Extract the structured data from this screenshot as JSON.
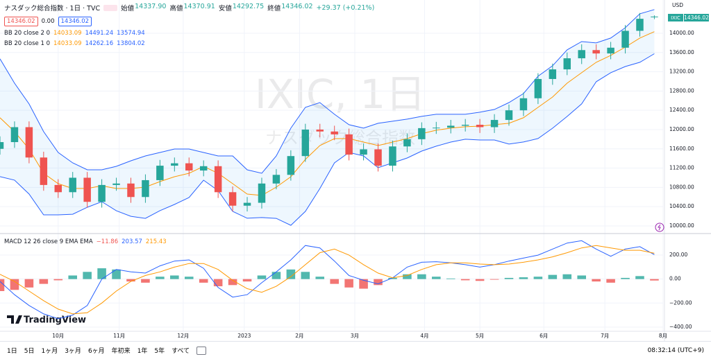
{
  "header": {
    "symbol": "ナスダック総合指数 · 1日 · TVC",
    "ohlc": [
      {
        "label": "始値",
        "value": "14337.90"
      },
      {
        "label": "高値",
        "value": "14370.91"
      },
      {
        "label": "安値",
        "value": "14292.75"
      },
      {
        "label": "終値",
        "value": "14346.02"
      }
    ],
    "change": "+29.37 (+0.21%)",
    "badges": [
      "14346.02",
      "0.00",
      "14346.02"
    ],
    "currency": "USD",
    "price_tag": {
      "symbol": "IXIC",
      "value": "14346.02"
    },
    "watermark": "IXIC, 1日",
    "watermark_sub": "ナスダック総合指数",
    "brand": "TradingView"
  },
  "chart_data": [
    {
      "type": "candlestick",
      "xlim": [
        0,
        228
      ],
      "ylim": [
        9870,
        14690
      ],
      "grid": true,
      "up_color": "#26a69a",
      "down_color": "#ef5350",
      "x": [
        0,
        5,
        10,
        15,
        20,
        25,
        30,
        35,
        40,
        45,
        50,
        55,
        60,
        65,
        70,
        75,
        80,
        85,
        90,
        95,
        100,
        105,
        110,
        115,
        120,
        125,
        130,
        135,
        140,
        145,
        150,
        155,
        160,
        165,
        170,
        175,
        180,
        185,
        190,
        195,
        200,
        205,
        210,
        215,
        220,
        225
      ],
      "open": [
        11600,
        11740,
        12050,
        11420,
        10850,
        10700,
        11000,
        10500,
        10850,
        10880,
        10600,
        10950,
        11250,
        11300,
        11150,
        11240,
        10700,
        10420,
        10480,
        10880,
        11060,
        11450,
        12000,
        11960,
        11900,
        11480,
        11590,
        11250,
        11650,
        11800,
        12030,
        12040,
        12080,
        12100,
        12050,
        12200,
        12400,
        12650,
        13050,
        13250,
        13480,
        13650,
        13580,
        13700,
        14050,
        14337.9
      ],
      "high": [
        11860,
        12170,
        12170,
        11540,
        10970,
        11120,
        11120,
        10970,
        11000,
        11000,
        11070,
        11370,
        11420,
        11420,
        11360,
        11360,
        10820,
        10600,
        11000,
        11180,
        11570,
        12120,
        12120,
        12080,
        12020,
        11710,
        11710,
        11770,
        11920,
        12150,
        12160,
        12200,
        12220,
        12220,
        12320,
        12520,
        12770,
        13170,
        13370,
        13600,
        13770,
        13770,
        13820,
        14170,
        14420,
        14370.91
      ],
      "low": [
        11480,
        11620,
        11300,
        10730,
        10580,
        10580,
        10380,
        10380,
        10730,
        10480,
        10480,
        10830,
        11130,
        11030,
        11030,
        10580,
        10300,
        10300,
        10360,
        10760,
        10940,
        11330,
        11840,
        11780,
        11360,
        11360,
        11130,
        11130,
        11530,
        11680,
        11910,
        11920,
        11960,
        11930,
        11930,
        12080,
        12280,
        12530,
        12930,
        13130,
        13360,
        13460,
        13460,
        13580,
        13930,
        14292.75
      ],
      "close": [
        11740,
        12050,
        11420,
        10850,
        10700,
        11000,
        10500,
        10850,
        10880,
        10600,
        10950,
        11250,
        11300,
        11150,
        11240,
        10700,
        10420,
        10480,
        10880,
        11060,
        11450,
        12000,
        11960,
        11900,
        11480,
        11590,
        11250,
        11650,
        11800,
        12030,
        12040,
        12080,
        12100,
        12050,
        12200,
        12400,
        12650,
        13050,
        13250,
        13480,
        13650,
        13580,
        13700,
        14050,
        14300,
        14346.02
      ],
      "yticks": [
        {
          "value": 10000,
          "label": "10000.00"
        },
        {
          "value": 10400,
          "label": "10400.00"
        },
        {
          "value": 10800,
          "label": "10800.00"
        },
        {
          "value": 11200,
          "label": "11200.00"
        },
        {
          "value": 11600,
          "label": "11600.00"
        },
        {
          "value": 12000,
          "label": "12000.00"
        },
        {
          "value": 12400,
          "label": "12400.00"
        },
        {
          "value": 12800,
          "label": "12800.00"
        },
        {
          "value": 13200,
          "label": "13200.00"
        },
        {
          "value": 13600,
          "label": "13600.00"
        },
        {
          "value": 14000,
          "label": "14000.00"
        }
      ],
      "bands": [
        {
          "name": "BB 20 close 2 0",
          "basis_color": "#ff9800",
          "band_color": "#2962ff",
          "fill": "rgba(33,150,243,0.08)",
          "last_labels": [
            "14033.09",
            "14491.24",
            "13574.94"
          ],
          "basis": [
            12245,
            11957,
            11597,
            11093,
            10877,
            10776,
            10776,
            10834,
            10776,
            10776,
            10805,
            10921,
            11021,
            11093,
            11237,
            11093,
            10877,
            10662,
            10633,
            10805,
            11021,
            11381,
            11669,
            11813,
            11813,
            11741,
            11669,
            11741,
            11813,
            11914,
            11986,
            12029,
            12058,
            12072,
            12101,
            12130,
            12245,
            12461,
            12676,
            12964,
            13180,
            13396,
            13540,
            13712,
            13900,
            14033.09
          ],
          "upper": [
            13468,
            12964,
            12532,
            11957,
            11525,
            11309,
            11165,
            11165,
            11237,
            11352,
            11453,
            11525,
            11597,
            11597,
            11525,
            11453,
            11453,
            11165,
            11093,
            11453,
            12029,
            12461,
            12561,
            12317,
            12101,
            12029,
            12130,
            12173,
            12216,
            12274,
            12317,
            12317,
            12317,
            12360,
            12418,
            12561,
            12748,
            13108,
            13324,
            13655,
            13827,
            13799,
            13900,
            14115,
            14403,
            14491.24
          ],
          "lower": [
            11022,
            10950,
            10662,
            10229,
            10229,
            10243,
            10387,
            10503,
            10315,
            10200,
            10157,
            10317,
            10445,
            10589,
            10949,
            10733,
            10301,
            10159,
            10173,
            10157,
            10013,
            10301,
            10777,
            11309,
            11525,
            11453,
            11208,
            11309,
            11410,
            11554,
            11655,
            11741,
            11799,
            11784,
            11784,
            11699,
            11742,
            11814,
            12028,
            12273,
            12533,
            12993,
            13180,
            13309,
            13397,
            13574.94
          ]
        },
        {
          "name": "BB 20 close 1 0",
          "basis_color": "#ff9800",
          "band_color": "#2962ff",
          "last_labels": [
            "14033.09",
            "14262.16",
            "13804.02"
          ]
        }
      ]
    },
    {
      "type": "macd",
      "name": "MACD 12 26 close 9 EMA EMA",
      "last_labels": [
        "−11.86",
        "203.57",
        "215.43"
      ],
      "label_colors": [
        "#ef5350",
        "#2962ff",
        "#ff9800"
      ],
      "xlim": [
        0,
        228
      ],
      "ylim": [
        -435,
        362
      ],
      "grid": true,
      "x": [
        0,
        5,
        10,
        15,
        20,
        25,
        30,
        35,
        40,
        45,
        50,
        55,
        60,
        65,
        70,
        75,
        80,
        85,
        90,
        95,
        100,
        105,
        110,
        115,
        120,
        125,
        130,
        135,
        140,
        145,
        150,
        155,
        160,
        165,
        170,
        175,
        180,
        185,
        190,
        195,
        200,
        205,
        210,
        215,
        220,
        225
      ],
      "yticks": [
        {
          "value": -400,
          "label": "−400.00"
        },
        {
          "value": -200,
          "label": "−200.00"
        },
        {
          "value": 0,
          "label": "0.00"
        },
        {
          "value": 200,
          "label": "200.00"
        }
      ],
      "xticks": [
        {
          "value": 20,
          "label": "10月"
        },
        {
          "value": 41,
          "label": "11月"
        },
        {
          "value": 63,
          "label": "12月"
        },
        {
          "value": 84,
          "label": "2023"
        },
        {
          "value": 103,
          "label": "2月"
        },
        {
          "value": 122,
          "label": "3月"
        },
        {
          "value": 146,
          "label": "4月"
        },
        {
          "value": 165,
          "label": "5月"
        },
        {
          "value": 187,
          "label": "6月"
        },
        {
          "value": 208,
          "label": "7月"
        },
        {
          "value": 228,
          "label": "8月"
        }
      ],
      "histogram": {
        "up_color": "#26a69a",
        "down_color": "#ef5350",
        "values": [
          -100,
          -90,
          -70,
          -40,
          -10,
          30,
          60,
          90,
          80,
          -20,
          -30,
          20,
          30,
          20,
          -30,
          -60,
          -50,
          -20,
          30,
          60,
          80,
          60,
          20,
          -40,
          -70,
          -80,
          -50,
          10,
          40,
          40,
          20,
          5,
          -10,
          -15,
          -5,
          10,
          15,
          20,
          35,
          40,
          30,
          -20,
          -30,
          10,
          25,
          -11.86
        ]
      },
      "macd": {
        "color": "#2962ff",
        "values": [
          -20,
          -130,
          -220,
          -290,
          -330,
          -300,
          -220,
          0,
          80,
          60,
          50,
          110,
          150,
          160,
          90,
          -70,
          -150,
          -130,
          -30,
          60,
          160,
          280,
          260,
          150,
          30,
          -10,
          -40,
          10,
          100,
          140,
          145,
          135,
          120,
          100,
          120,
          150,
          175,
          200,
          250,
          300,
          320,
          250,
          190,
          250,
          270,
          203.57
        ]
      },
      "signal": {
        "color": "#ff9800",
        "values": [
          40,
          -20,
          -100,
          -180,
          -250,
          -290,
          -280,
          -200,
          -100,
          -20,
          30,
          60,
          100,
          130,
          130,
          80,
          -10,
          -80,
          -110,
          -60,
          20,
          120,
          220,
          250,
          200,
          120,
          50,
          10,
          30,
          80,
          120,
          135,
          135,
          125,
          120,
          125,
          140,
          160,
          185,
          220,
          260,
          280,
          260,
          240,
          240,
          215.43
        ]
      }
    }
  ],
  "toolbar": {
    "ranges": [
      "1日",
      "5日",
      "1ヶ月",
      "3ヶ月",
      "6ヶ月",
      "年初来",
      "1年",
      "5年",
      "すべて"
    ],
    "clock": "08:32:14 (UTC+9)"
  }
}
